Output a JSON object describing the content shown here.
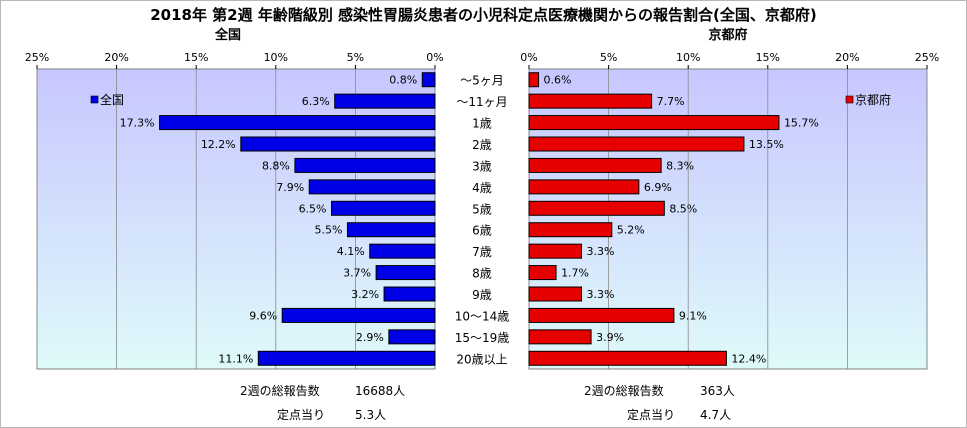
{
  "title": "2018年 第2週 年齢階級別 感染性胃腸炎患者の小児科定点医療機関からの報告割合(全国、京都府)",
  "colors": {
    "national": "#0000e6",
    "kyoto": "#e60000",
    "plot_bg_top": "#c7c7ff",
    "plot_bg_bottom": "#dffafa"
  },
  "chart_data": [
    {
      "type": "bar",
      "orientation": "horizontal-reversed",
      "title": "全国",
      "legend": "全国",
      "legend_position": "top-left",
      "categories": [
        "～5ヶ月",
        "～11ヶ月",
        "1歳",
        "2歳",
        "3歳",
        "4歳",
        "5歳",
        "6歳",
        "7歳",
        "8歳",
        "9歳",
        "10～14歳",
        "15～19歳",
        "20歳以上"
      ],
      "values": [
        0.8,
        6.3,
        17.3,
        12.2,
        8.8,
        7.9,
        6.5,
        5.5,
        4.1,
        3.7,
        3.2,
        9.6,
        2.9,
        11.1
      ],
      "data_labels": [
        "0.8%",
        "6.3%",
        "17.3%",
        "12.2%",
        "8.8%",
        "7.9%",
        "6.5%",
        "5.5%",
        "4.1%",
        "3.7%",
        "3.2%",
        "9.6%",
        "2.9%",
        "11.1%"
      ],
      "xlim": [
        0,
        25
      ],
      "xticks": [
        "0%",
        "5%",
        "10%",
        "15%",
        "20%",
        "25%"
      ],
      "grid": true
    },
    {
      "type": "bar",
      "orientation": "horizontal",
      "title": "京都府",
      "legend": "京都府",
      "legend_position": "top-right",
      "categories": [
        "～5ヶ月",
        "～11ヶ月",
        "1歳",
        "2歳",
        "3歳",
        "4歳",
        "5歳",
        "6歳",
        "7歳",
        "8歳",
        "9歳",
        "10～14歳",
        "15～19歳",
        "20歳以上"
      ],
      "values": [
        0.6,
        7.7,
        15.7,
        13.5,
        8.3,
        6.9,
        8.5,
        5.2,
        3.3,
        1.7,
        3.3,
        9.1,
        3.9,
        12.4
      ],
      "data_labels": [
        "0.6%",
        "7.7%",
        "15.7%",
        "13.5%",
        "8.3%",
        "6.9%",
        "8.5%",
        "5.2%",
        "3.3%",
        "1.7%",
        "3.3%",
        "9.1%",
        "3.9%",
        "12.4%"
      ],
      "xlim": [
        0,
        25
      ],
      "xticks": [
        "0%",
        "5%",
        "10%",
        "15%",
        "20%",
        "25%"
      ],
      "grid": true
    }
  ],
  "stats": {
    "national": {
      "total_label": "2週の総報告数",
      "total_value": "16688人",
      "per_label": "定点当り",
      "per_value": "5.3人"
    },
    "kyoto": {
      "total_label": "2週の総報告数",
      "total_value": "363人",
      "per_label": "定点当り",
      "per_value": "4.7人"
    }
  }
}
